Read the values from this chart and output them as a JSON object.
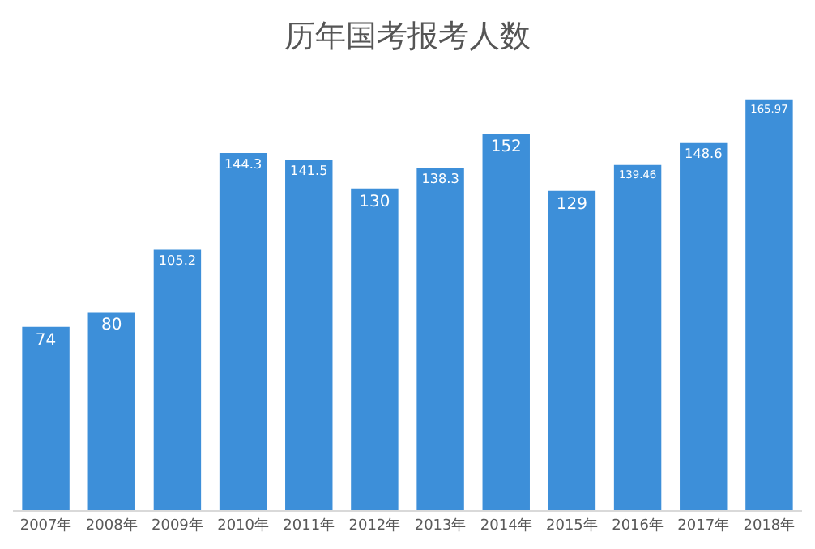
{
  "chart_data": {
    "type": "bar",
    "title": "历年国考报考人数",
    "categories": [
      "2007年",
      "2008年",
      "2009年",
      "2010年",
      "2011年",
      "2012年",
      "2013年",
      "2014年",
      "2015年",
      "2016年",
      "2017年",
      "2018年"
    ],
    "values": [
      74,
      80,
      105.2,
      144.3,
      141.5,
      130,
      138.3,
      152,
      129,
      139.46,
      148.6,
      165.97
    ],
    "color": "#3d8fd9",
    "data_labels": true
  }
}
